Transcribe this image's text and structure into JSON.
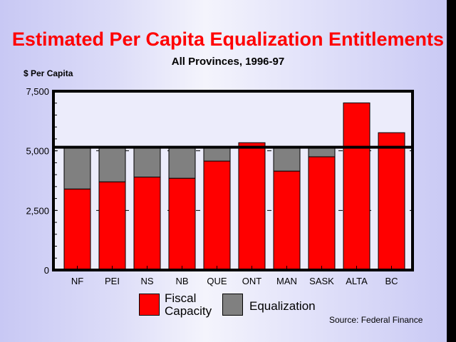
{
  "chart_data": {
    "type": "bar",
    "stacked": true,
    "title": "Estimated Per Capita Equalization Entitlements",
    "subtitle": "All Provinces, 1996-97",
    "ylabel": "$ Per Capita",
    "xlabel": "",
    "ylim": [
      0,
      7500
    ],
    "yticks": [
      0,
      2500,
      5000,
      7500
    ],
    "ytick_labels": [
      "0",
      "2,500",
      "5,000",
      "7,500"
    ],
    "categories": [
      "NF",
      "PEI",
      "NS",
      "NB",
      "QUE",
      "ONT",
      "MAN",
      "SASK",
      "ALTA",
      "BC"
    ],
    "standard": 5150,
    "series": [
      {
        "name": "Fiscal Capacity",
        "color": "#ff0000",
        "values": [
          3400,
          3700,
          3900,
          3850,
          4570,
          5340,
          4150,
          4750,
          7010,
          5760
        ]
      },
      {
        "name": "Equalization",
        "color": "#808080",
        "values": [
          1750,
          1450,
          1250,
          1300,
          580,
          0,
          1000,
          400,
          0,
          0
        ]
      }
    ],
    "legend_labels": [
      "Fiscal\nCapacity",
      "Equalization"
    ],
    "legend_position": "bottom",
    "grid": "dashed stubs at 2,500 and 5,000",
    "source": "Source: Federal Finance"
  }
}
